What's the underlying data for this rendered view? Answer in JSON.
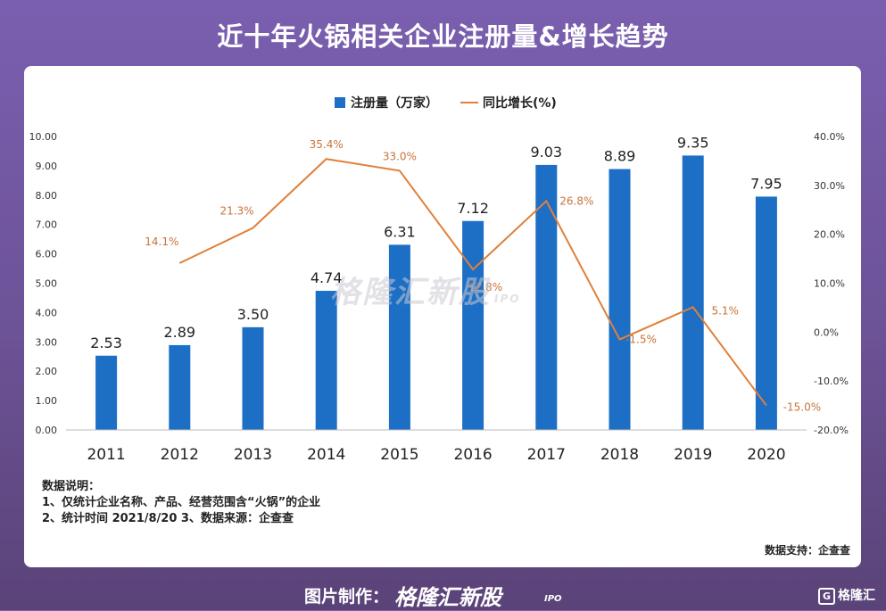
{
  "title": "近十年火锅相关企业注册量&增长趋势",
  "legend": {
    "bar_label": "注册量（万家）",
    "line_label": "同比增长(%)"
  },
  "watermark": {
    "text": "格隆汇新股",
    "sub": "IPO"
  },
  "notes": {
    "heading": "数据说明：",
    "line1": "1、仅统计企业名称、产品、经营范围含“火锅”的企业",
    "line2": "2、统计时间 2021/8/20   3、数据来源：企查查"
  },
  "support": "数据支持：企查查",
  "footer": {
    "made": "图片制作：",
    "brand": "格隆汇新股",
    "ipo": "IPO",
    "logo_mark": "G",
    "logo": "格隆汇"
  },
  "colors": {
    "bar": "#1c6fc4",
    "line": "#e0803a",
    "line_label": "#c9733a"
  },
  "chart_data": {
    "type": "bar",
    "categories": [
      "2011",
      "2012",
      "2013",
      "2014",
      "2015",
      "2016",
      "2017",
      "2018",
      "2019",
      "2020"
    ],
    "series": [
      {
        "name": "注册量（万家）",
        "type": "bar",
        "axis": "left",
        "values": [
          2.53,
          2.89,
          3.5,
          4.74,
          6.31,
          7.12,
          9.03,
          8.89,
          9.35,
          7.95
        ],
        "labels": [
          "2.53",
          "2.89",
          "3.50",
          "4.74",
          "6.31",
          "7.12",
          "9.03",
          "8.89",
          "9.35",
          "7.95"
        ]
      },
      {
        "name": "同比增长(%)",
        "type": "line",
        "axis": "right",
        "values": [
          null,
          14.1,
          21.3,
          35.4,
          33.0,
          12.8,
          26.8,
          -1.5,
          5.1,
          -15.0
        ],
        "labels": [
          "",
          "14.1%",
          "21.3%",
          "35.4%",
          "33.0%",
          "12.8%",
          "26.8%",
          "-1.5%",
          "5.1%",
          "-15.0%"
        ]
      }
    ],
    "y_left": {
      "range": [
        0,
        10
      ],
      "ticks": [
        "0.00",
        "1.00",
        "2.00",
        "3.00",
        "4.00",
        "5.00",
        "6.00",
        "7.00",
        "8.00",
        "9.00",
        "10.00"
      ]
    },
    "y_right": {
      "range": [
        -20,
        40
      ],
      "ticks": [
        "-20.0%",
        "-10.0%",
        "0.0%",
        "10.0%",
        "20.0%",
        "30.0%",
        "40.0%"
      ]
    },
    "grid": false,
    "legend_position": "top-center"
  }
}
